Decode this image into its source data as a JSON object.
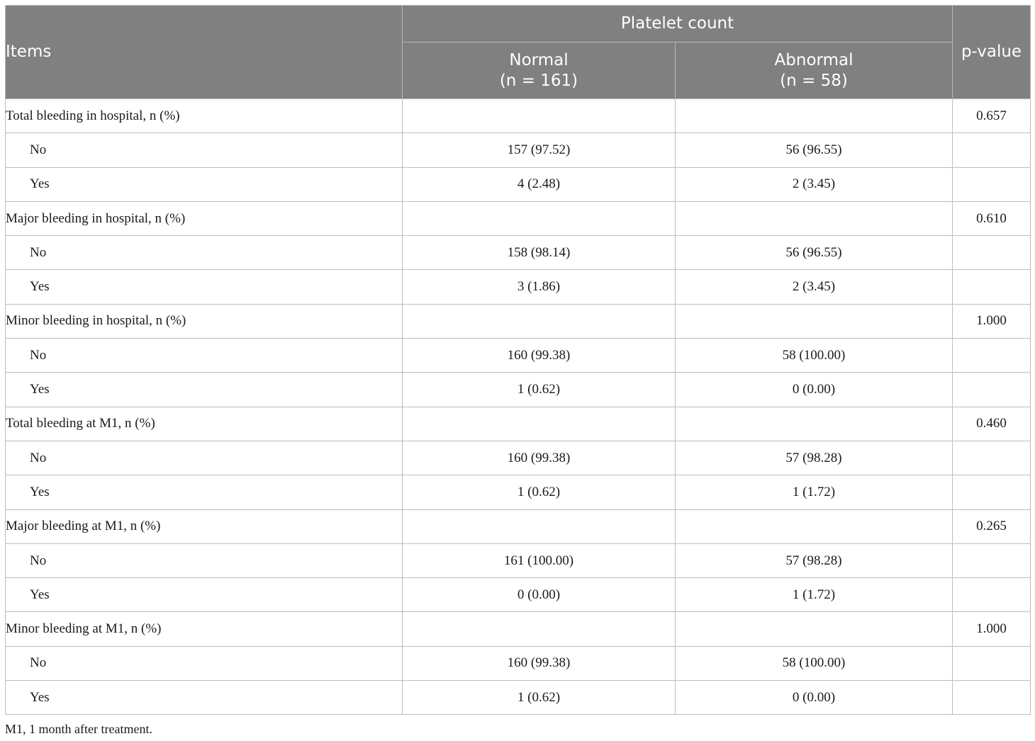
{
  "header": {
    "items": "Items",
    "group": "Platelet count",
    "normal": "Normal",
    "normal_n": "(n = 161)",
    "abnormal": "Abnormal",
    "abnormal_n": "(n = 58)",
    "pvalue": "p-value"
  },
  "rows": [
    {
      "label": "Total bleeding in hospital, n (%)",
      "normal": "",
      "abnormal": "",
      "p": "0.657"
    },
    {
      "label": "No",
      "normal": "157 (97.52)",
      "abnormal": "56 (96.55)",
      "p": ""
    },
    {
      "label": "Yes",
      "normal": "4 (2.48)",
      "abnormal": "2 (3.45)",
      "p": ""
    },
    {
      "label": "Major bleeding in hospital, n (%)",
      "normal": "",
      "abnormal": "",
      "p": "0.610"
    },
    {
      "label": "No",
      "normal": "158 (98.14)",
      "abnormal": "56 (96.55)",
      "p": ""
    },
    {
      "label": "Yes",
      "normal": "3 (1.86)",
      "abnormal": "2 (3.45)",
      "p": ""
    },
    {
      "label": "Minor bleeding in hospital, n (%)",
      "normal": "",
      "abnormal": "",
      "p": "1.000"
    },
    {
      "label": "No",
      "normal": "160 (99.38)",
      "abnormal": "58 (100.00)",
      "p": ""
    },
    {
      "label": "Yes",
      "normal": "1 (0.62)",
      "abnormal": "0 (0.00)",
      "p": ""
    },
    {
      "label": "Total bleeding at M1, n (%)",
      "normal": "",
      "abnormal": "",
      "p": "0.460"
    },
    {
      "label": "No",
      "normal": "160 (99.38)",
      "abnormal": "57 (98.28)",
      "p": ""
    },
    {
      "label": "Yes",
      "normal": "1 (0.62)",
      "abnormal": "1 (1.72)",
      "p": ""
    },
    {
      "label": "Major bleeding at M1, n (%)",
      "normal": "",
      "abnormal": "",
      "p": "0.265"
    },
    {
      "label": "No",
      "normal": "161 (100.00)",
      "abnormal": "57 (98.28)",
      "p": ""
    },
    {
      "label": "Yes",
      "normal": "0 (0.00)",
      "abnormal": "1 (1.72)",
      "p": ""
    },
    {
      "label": "Minor bleeding at M1, n (%)",
      "normal": "",
      "abnormal": "",
      "p": "1.000"
    },
    {
      "label": "No",
      "normal": "160 (99.38)",
      "abnormal": "58 (100.00)",
      "p": ""
    },
    {
      "label": "Yes",
      "normal": "1 (0.62)",
      "abnormal": "0 (0.00)",
      "p": ""
    }
  ],
  "footnote": "M1, 1 month after treatment.",
  "colors": {
    "header_bg": "#808080",
    "header_text": "#ffffff",
    "grid": "#bdbdbd"
  }
}
